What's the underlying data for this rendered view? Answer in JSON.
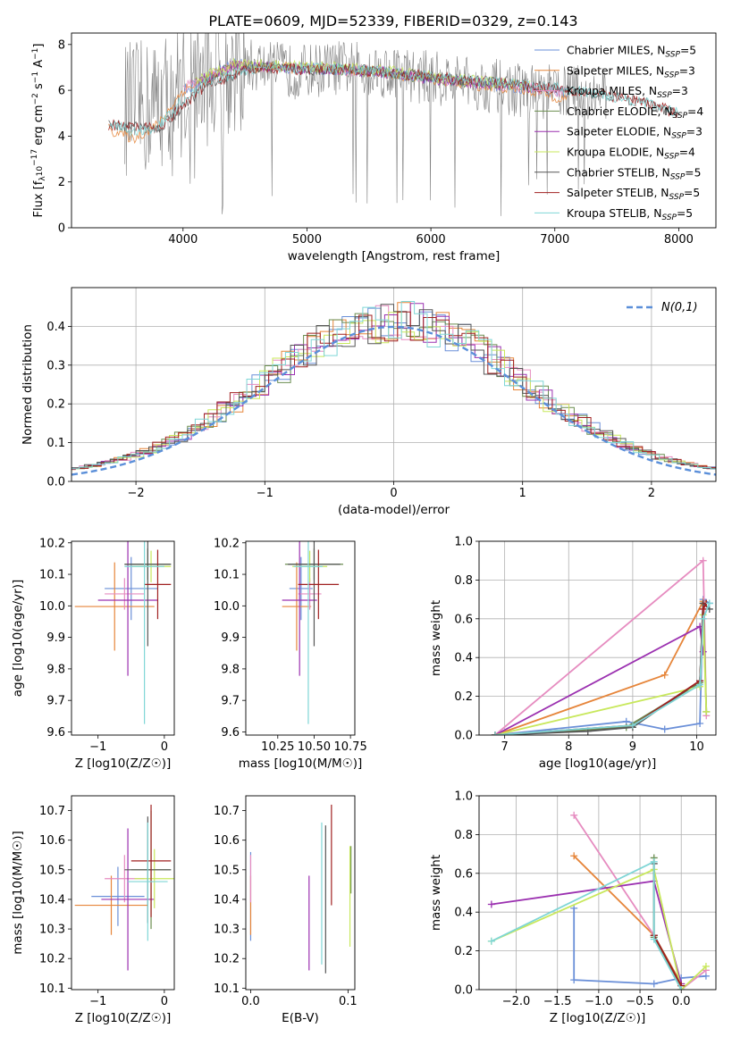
{
  "figure": {
    "title": "PLATE=0609, MJD=52339, FIBERID=0329, z=0.143"
  },
  "chart_data": [
    {
      "id": "spectrum",
      "type": "line",
      "xlabel": "wavelength [Angstrom, rest frame]",
      "ylabel": "Flux [f_λ 10^-17 erg cm^-2 s^-1 A^-1]",
      "xlim": [
        3100,
        8300
      ],
      "ylim": [
        0,
        8.5
      ],
      "xticks": [
        4000,
        5000,
        6000,
        7000,
        8000
      ],
      "yticks": [
        0,
        2,
        4,
        6,
        8
      ],
      "grid": false,
      "legend_position": "upper right",
      "data_spectrum": {
        "color": "#808080",
        "x": [
          3700,
          3900,
          4100,
          4300,
          4500,
          4700,
          4900,
          5100,
          5300,
          5500,
          5700,
          5900,
          6100,
          6300,
          6500,
          6700,
          6900,
          7100,
          7300
        ],
        "y": [
          5.2,
          5.8,
          6.4,
          6.7,
          7.1,
          7.0,
          6.8,
          6.9,
          7.0,
          6.9,
          6.8,
          6.6,
          6.5,
          6.3,
          6.2,
          6.0,
          5.9,
          6.0,
          5.8
        ]
      },
      "series": [
        {
          "name": "Chabrier MILES, N_SSP=5",
          "color": "#6a8fd8",
          "x": [
            4000,
            4400,
            4800,
            5200,
            5600,
            6000,
            6400,
            6800,
            7100
          ],
          "y": [
            6.0,
            7.2,
            7.0,
            6.9,
            6.8,
            6.5,
            6.3,
            6.0,
            5.9
          ]
        },
        {
          "name": "Salpeter MILES, N_SSP=3",
          "color": "#e6853a",
          "x": [
            3400,
            3600,
            3800,
            4000,
            4400,
            4800,
            5200,
            5600,
            6000,
            6400,
            6800,
            7100
          ],
          "y": [
            4.3,
            3.9,
            4.5,
            6.0,
            7.0,
            7.0,
            6.9,
            6.8,
            6.5,
            6.2,
            6.0,
            5.6
          ]
        },
        {
          "name": "Kroupa MILES, N_SSP=3",
          "color": "#e68cc0",
          "x": [
            4000,
            4400,
            4800,
            5200,
            5600,
            6000,
            6400,
            6800,
            7100
          ],
          "y": [
            6.1,
            7.1,
            7.0,
            6.9,
            6.8,
            6.5,
            6.3,
            6.1,
            5.9
          ]
        },
        {
          "name": "Chabrier ELODIE, N_SSP=4",
          "color": "#6b8e50",
          "x": [
            4100,
            4400,
            4800,
            5200,
            5600,
            6000,
            6400,
            6800
          ],
          "y": [
            6.3,
            7.1,
            7.0,
            6.9,
            6.8,
            6.5,
            6.3,
            6.1
          ]
        },
        {
          "name": "Salpeter ELODIE, N_SSP=3",
          "color": "#9b30b0",
          "x": [
            4100,
            4400,
            4800,
            5200,
            5600,
            6000,
            6400,
            6800
          ],
          "y": [
            6.3,
            7.1,
            7.0,
            6.9,
            6.8,
            6.5,
            6.3,
            6.1
          ]
        },
        {
          "name": "Kroupa ELODIE, N_SSP=4",
          "color": "#c8e85c",
          "x": [
            4100,
            4400,
            4800,
            5200,
            5600,
            6000,
            6400,
            6800
          ],
          "y": [
            6.4,
            7.2,
            7.1,
            7.0,
            6.9,
            6.6,
            6.4,
            6.2
          ]
        },
        {
          "name": "Chabrier STELIB, N_SSP=5",
          "color": "#555555",
          "x": [
            3400,
            3800,
            4200,
            4600,
            5000,
            5400,
            5800,
            6200,
            6600,
            7000,
            7400,
            7700,
            8000
          ],
          "y": [
            4.5,
            4.3,
            6.3,
            7.0,
            6.9,
            6.9,
            6.7,
            6.5,
            6.3,
            6.1,
            5.8,
            5.5,
            5.0
          ]
        },
        {
          "name": "Salpeter STELIB, N_SSP=5",
          "color": "#a02020",
          "x": [
            3400,
            3800,
            4200,
            4600,
            5000,
            5400,
            5800,
            6200,
            6600,
            7000,
            7400,
            7700,
            8000
          ],
          "y": [
            4.5,
            4.3,
            6.3,
            7.0,
            6.9,
            6.9,
            6.7,
            6.5,
            6.3,
            6.1,
            5.8,
            5.5,
            5.0
          ]
        },
        {
          "name": "Kroupa STELIB, N_SSP=5",
          "color": "#7fd6d6",
          "x": [
            3400,
            3600,
            3800,
            4000,
            4200,
            4600,
            5000,
            5400,
            5800,
            6200,
            6600,
            7000,
            7400,
            7700,
            8000
          ],
          "y": [
            4.6,
            4.2,
            4.4,
            5.6,
            6.4,
            7.0,
            7.0,
            6.9,
            6.7,
            6.5,
            6.3,
            6.1,
            5.8,
            5.5,
            5.0
          ]
        }
      ]
    },
    {
      "id": "residuals",
      "type": "line",
      "xlabel": "(data-model)/error",
      "ylabel": "Normed distribution",
      "xlim": [
        -2.5,
        2.5
      ],
      "ylim": [
        0,
        0.5
      ],
      "xticks": [
        -2,
        -1,
        0,
        1,
        2
      ],
      "yticks": [
        0.0,
        0.1,
        0.2,
        0.3,
        0.4
      ],
      "grid": true,
      "legend_position": "upper right",
      "legend_label": "N(0,1)",
      "normal_color": "#5b8fd9"
    },
    {
      "id": "age_vs_Z",
      "type": "scatter",
      "xlabel": "Z [log10(Z/Z☉)]",
      "ylabel": "age  [log10(age/yr)]",
      "xlim": [
        -1.4,
        0.15
      ],
      "ylim": [
        9.59,
        10.205
      ],
      "xticks": [
        -1,
        0
      ],
      "yticks": [
        9.6,
        9.7,
        9.8,
        9.9,
        10.0,
        10.1,
        10.2
      ],
      "points": [
        {
          "color": "#6a8fd8",
          "x": -0.5,
          "xerr": 0.4,
          "y": 10.055,
          "yerr": 0.1
        },
        {
          "color": "#e6853a",
          "x": -0.75,
          "xerr": 0.6,
          "y": 9.998,
          "yerr": 0.14
        },
        {
          "color": "#e68cc0",
          "x": -0.6,
          "xerr": 0.3,
          "y": 10.038,
          "yerr": 0.05
        },
        {
          "color": "#6b8e50",
          "x": -0.25,
          "xerr": 0.35,
          "y": 10.132,
          "yerr": 0.05
        },
        {
          "color": "#9b30b0",
          "x": -0.55,
          "xerr": 0.45,
          "y": 10.018,
          "yerr": 0.24
        },
        {
          "color": "#c8e85c",
          "x": -0.2,
          "xerr": 0.3,
          "y": 10.125,
          "yerr": 0.05
        },
        {
          "color": "#555555",
          "x": -0.25,
          "xerr": 0.35,
          "y": 10.132,
          "yerr": 0.26
        },
        {
          "color": "#a02020",
          "x": -0.1,
          "xerr": 0.2,
          "y": 10.068,
          "yerr": 0.11
        },
        {
          "color": "#7fd6d6",
          "x": -0.3,
          "xerr": 0.3,
          "y": 10.125,
          "yerr": 0.5
        }
      ]
    },
    {
      "id": "age_vs_mass",
      "type": "scatter",
      "xlabel": "mass [log10(M/M☉)]",
      "ylabel": "",
      "xlim": [
        10.03,
        10.78
      ],
      "ylim": [
        9.59,
        10.205
      ],
      "xticks": [
        10.25,
        10.5,
        10.75
      ],
      "yticks": [
        9.6,
        9.7,
        9.8,
        9.9,
        10.0,
        10.1,
        10.2
      ],
      "points": [
        {
          "color": "#6a8fd8",
          "x": 10.41,
          "xerr": 0.08,
          "y": 10.055,
          "yerr": 0.1
        },
        {
          "color": "#e6853a",
          "x": 10.38,
          "xerr": 0.1,
          "y": 9.998,
          "yerr": 0.14
        },
        {
          "color": "#e68cc0",
          "x": 10.47,
          "xerr": 0.08,
          "y": 10.038,
          "yerr": 0.05
        },
        {
          "color": "#6b8e50",
          "x": 10.5,
          "xerr": 0.2,
          "y": 10.132,
          "yerr": 0.05
        },
        {
          "color": "#9b30b0",
          "x": 10.4,
          "xerr": 0.12,
          "y": 10.018,
          "yerr": 0.24
        },
        {
          "color": "#c8e85c",
          "x": 10.47,
          "xerr": 0.12,
          "y": 10.125,
          "yerr": 0.05
        },
        {
          "color": "#555555",
          "x": 10.5,
          "xerr": 0.18,
          "y": 10.132,
          "yerr": 0.26
        },
        {
          "color": "#a02020",
          "x": 10.53,
          "xerr": 0.14,
          "y": 10.068,
          "yerr": 0.11
        },
        {
          "color": "#7fd6d6",
          "x": 10.46,
          "xerr": 0.1,
          "y": 10.125,
          "yerr": 0.5
        }
      ]
    },
    {
      "id": "mass_weight_vs_age",
      "type": "line",
      "xlabel": "age  [log10(age/yr)]",
      "ylabel": "mass weight",
      "xlim": [
        6.6,
        10.3
      ],
      "ylim": [
        0,
        1.0
      ],
      "xticks": [
        7,
        8,
        9,
        10
      ],
      "yticks": [
        0.0,
        0.2,
        0.4,
        0.6,
        0.8,
        1.0
      ],
      "grid": true,
      "series": [
        {
          "color": "#6a8fd8",
          "x": [
            6.85,
            8.9,
            9.5,
            10.05,
            10.1,
            10.2
          ],
          "y": [
            0.0,
            0.07,
            0.03,
            0.06,
            0.7,
            0.68
          ]
        },
        {
          "color": "#e6853a",
          "x": [
            6.85,
            9.5,
            10.1
          ],
          "y": [
            0.0,
            0.31,
            0.69
          ]
        },
        {
          "color": "#e68cc0",
          "x": [
            6.85,
            10.1,
            10.15
          ],
          "y": [
            0.0,
            0.9,
            0.1
          ]
        },
        {
          "color": "#6b8e50",
          "x": [
            6.85,
            8.9,
            10.05,
            10.1,
            10.15
          ],
          "y": [
            0.0,
            0.04,
            0.27,
            0.68,
            0.12
          ]
        },
        {
          "color": "#9b30b0",
          "x": [
            6.85,
            10.05,
            10.1
          ],
          "y": [
            0.0,
            0.56,
            0.43
          ]
        },
        {
          "color": "#c8e85c",
          "x": [
            6.85,
            10.05,
            10.1,
            10.15
          ],
          "y": [
            0.0,
            0.25,
            0.62,
            0.12
          ]
        },
        {
          "color": "#555555",
          "x": [
            6.85,
            8.3,
            9.0,
            10.05,
            10.1,
            10.2
          ],
          "y": [
            0.0,
            0.02,
            0.04,
            0.28,
            0.68,
            0.65
          ]
        },
        {
          "color": "#a02020",
          "x": [
            6.85,
            9.0,
            10.05,
            10.1,
            10.15
          ],
          "y": [
            0.0,
            0.05,
            0.28,
            0.65,
            0.68
          ]
        },
        {
          "color": "#7fd6d6",
          "x": [
            6.85,
            9.0,
            10.05,
            10.1,
            10.2
          ],
          "y": [
            0.0,
            0.05,
            0.26,
            0.6,
            0.68
          ]
        }
      ]
    },
    {
      "id": "mass_vs_Z",
      "type": "scatter",
      "xlabel": "Z [log10(Z/Z☉)]",
      "ylabel": "mass [log10(M/M☉)]",
      "xlim": [
        -1.4,
        0.15
      ],
      "ylim": [
        10.095,
        10.75
      ],
      "xticks": [
        -1,
        0
      ],
      "yticks": [
        10.1,
        10.2,
        10.3,
        10.4,
        10.5,
        10.6,
        10.7
      ],
      "points": [
        {
          "color": "#6a8fd8",
          "x": -0.7,
          "xerr": 0.4,
          "y": 10.41,
          "yerr": 0.1
        },
        {
          "color": "#e6853a",
          "x": -0.8,
          "xerr": 0.55,
          "y": 10.38,
          "yerr": 0.1
        },
        {
          "color": "#e68cc0",
          "x": -0.6,
          "xerr": 0.3,
          "y": 10.47,
          "yerr": 0.08
        },
        {
          "color": "#6b8e50",
          "x": -0.2,
          "xerr": 0.3,
          "y": 10.5,
          "yerr": 0.2
        },
        {
          "color": "#9b30b0",
          "x": -0.55,
          "xerr": 0.4,
          "y": 10.4,
          "yerr": 0.24
        },
        {
          "color": "#c8e85c",
          "x": -0.15,
          "xerr": 0.3,
          "y": 10.47,
          "yerr": 0.1
        },
        {
          "color": "#555555",
          "x": -0.25,
          "xerr": 0.35,
          "y": 10.5,
          "yerr": 0.18
        },
        {
          "color": "#a02020",
          "x": -0.2,
          "xerr": 0.3,
          "y": 10.53,
          "yerr": 0.19
        },
        {
          "color": "#7fd6d6",
          "x": -0.25,
          "xerr": 0.3,
          "y": 10.46,
          "yerr": 0.2
        }
      ]
    },
    {
      "id": "mass_vs_EBV",
      "type": "scatter",
      "xlabel": "E(B-V)",
      "ylabel": "",
      "xlim": [
        -0.005,
        0.107
      ],
      "ylim": [
        10.095,
        10.75
      ],
      "xticks": [
        0.0,
        0.1
      ],
      "yticks": [
        10.1,
        10.2,
        10.3,
        10.4,
        10.5,
        10.6,
        10.7
      ],
      "points": [
        {
          "color": "#6a8fd8",
          "x": 0.0,
          "y": 10.41,
          "yerr": 0.15
        },
        {
          "color": "#e6853a",
          "x": 0.0,
          "y": 10.38,
          "yerr": 0.1
        },
        {
          "color": "#e68cc0",
          "x": 0.0,
          "y": 10.47,
          "yerr": 0.08
        },
        {
          "color": "#6b8e50",
          "x": 0.103,
          "y": 10.5,
          "yerr": 0.08
        },
        {
          "color": "#9b30b0",
          "x": 0.06,
          "y": 10.32,
          "yerr": 0.16
        },
        {
          "color": "#c8e85c",
          "x": 0.102,
          "y": 10.41,
          "yerr": 0.17
        },
        {
          "color": "#555555",
          "x": 0.077,
          "y": 10.4,
          "yerr": 0.25
        },
        {
          "color": "#a02020",
          "x": 0.083,
          "y": 10.55,
          "yerr": 0.17
        },
        {
          "color": "#7fd6d6",
          "x": 0.073,
          "y": 10.42,
          "yerr": 0.24
        }
      ]
    },
    {
      "id": "mass_weight_vs_Z",
      "type": "line",
      "xlabel": "Z [log10(Z/Z☉)]",
      "ylabel": "mass weight",
      "xlim": [
        -2.45,
        0.42
      ],
      "ylim": [
        0,
        1.0
      ],
      "xticks": [
        -2.0,
        -1.5,
        -1.0,
        -0.5,
        0.0
      ],
      "yticks": [
        0.0,
        0.2,
        0.4,
        0.6,
        0.8,
        1.0
      ],
      "grid": true,
      "series": [
        {
          "color": "#6a8fd8",
          "x": [
            -1.3,
            -1.3,
            -0.33,
            0.0,
            0.3
          ],
          "y": [
            0.42,
            0.05,
            0.03,
            0.06,
            0.07
          ]
        },
        {
          "color": "#e6853a",
          "x": [
            -1.3,
            -0.33,
            0.0
          ],
          "y": [
            0.69,
            0.28,
            0.03
          ]
        },
        {
          "color": "#e68cc0",
          "x": [
            -1.3,
            -0.33,
            0.0,
            0.3
          ],
          "y": [
            0.9,
            0.28,
            0.0,
            0.1
          ]
        },
        {
          "color": "#6b8e50",
          "x": [
            -0.33,
            -0.33,
            0.0
          ],
          "y": [
            0.68,
            0.27,
            0.0
          ]
        },
        {
          "color": "#9b30b0",
          "x": [
            -2.3,
            -0.33,
            0.0
          ],
          "y": [
            0.44,
            0.56,
            0.03
          ]
        },
        {
          "color": "#c8e85c",
          "x": [
            -2.3,
            -0.33,
            0.0,
            0.3
          ],
          "y": [
            0.25,
            0.62,
            0.0,
            0.12
          ]
        },
        {
          "color": "#555555",
          "x": [
            -0.33,
            -0.33,
            0.0
          ],
          "y": [
            0.65,
            0.28,
            0.02
          ]
        },
        {
          "color": "#a02020",
          "x": [
            -0.33,
            0.0
          ],
          "y": [
            0.28,
            0.02
          ]
        },
        {
          "color": "#7fd6d6",
          "x": [
            -2.3,
            -0.33,
            -0.33,
            0.0
          ],
          "y": [
            0.25,
            0.66,
            0.26,
            0.0
          ]
        }
      ]
    }
  ]
}
